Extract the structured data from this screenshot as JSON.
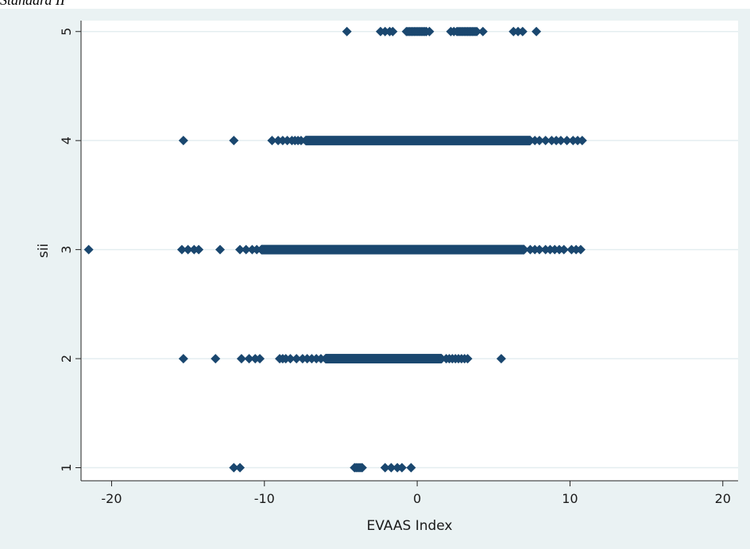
{
  "caption": "Standard II",
  "chart_data": {
    "type": "scatter",
    "title": "",
    "xlabel": "EVAAS Index",
    "ylabel": "sii",
    "xlim": [
      -22,
      21
    ],
    "ylim": [
      0.88,
      5.1
    ],
    "xticks": [
      -20,
      -10,
      0,
      10,
      20
    ],
    "yticks": [
      1,
      2,
      3,
      4,
      5
    ],
    "grid": "horizontal",
    "colors": {
      "outer_background": "#eaf2f3",
      "plot_background": "#ffffff",
      "marker": "#1a476f",
      "gridline": "#e4eef0",
      "axis": "#222222"
    },
    "series": [
      {
        "y": 5,
        "ranges": [],
        "points": [
          -4.6,
          -2.4,
          -2.1,
          -1.8,
          -1.6,
          -0.7,
          -0.6,
          -0.5,
          -0.4,
          -0.3,
          -0.2,
          -0.1,
          0.0,
          0.1,
          0.2,
          0.3,
          0.4,
          0.5,
          0.6,
          0.8,
          2.2,
          2.4,
          2.6,
          2.7,
          2.8,
          2.9,
          3.0,
          3.1,
          3.2,
          3.3,
          3.4,
          3.5,
          3.6,
          3.7,
          3.8,
          3.9,
          4.3,
          6.3,
          6.6,
          6.9,
          7.8
        ]
      },
      {
        "y": 4,
        "ranges": [
          [
            -7.3,
            7.4
          ]
        ],
        "points": [
          -15.3,
          -12.0,
          -9.5,
          -9.1,
          -8.8,
          -8.5,
          -8.2,
          -8.0,
          -7.8,
          -7.6,
          7.7,
          8.0,
          8.4,
          8.8,
          9.1,
          9.4,
          9.8,
          10.2,
          10.5,
          10.8
        ]
      },
      {
        "y": 3,
        "ranges": [
          [
            -10.2,
            7.0
          ]
        ],
        "points": [
          -21.5,
          -15.4,
          -15.0,
          -14.6,
          -14.3,
          -12.9,
          -11.6,
          -11.2,
          -10.8,
          -10.5,
          7.4,
          7.7,
          8.0,
          8.4,
          8.7,
          9.0,
          9.3,
          9.6,
          10.1,
          10.4,
          10.7
        ]
      },
      {
        "y": 2,
        "ranges": [
          [
            -6.0,
            1.6
          ]
        ],
        "points": [
          -15.3,
          -13.2,
          -11.5,
          -11.0,
          -10.6,
          -10.3,
          -9.0,
          -8.8,
          -8.6,
          -8.3,
          -7.9,
          -7.5,
          -7.2,
          -6.9,
          -6.6,
          -6.3,
          1.9,
          2.1,
          2.3,
          2.5,
          2.7,
          2.9,
          3.1,
          3.3,
          5.5
        ]
      },
      {
        "y": 1,
        "ranges": [],
        "points": [
          -12.0,
          -11.6,
          -4.1,
          -4.0,
          -3.9,
          -3.8,
          -3.7,
          -3.6,
          -2.1,
          -1.7,
          -1.3,
          -1.0,
          -0.4
        ]
      }
    ]
  }
}
